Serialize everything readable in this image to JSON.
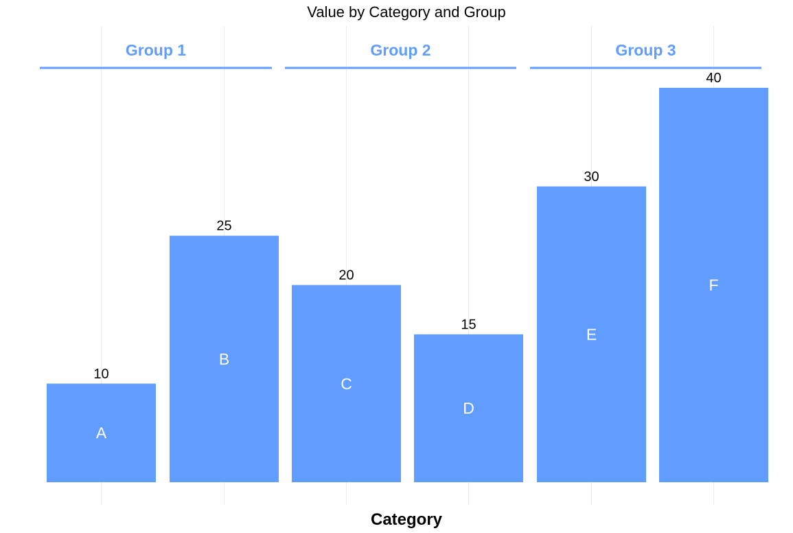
{
  "chart_data": {
    "type": "bar",
    "title": "Value by Category and Group",
    "xlabel": "Category",
    "ylabel": "",
    "ylim": [
      0,
      40
    ],
    "grid": "vertical-only",
    "legend": "none",
    "categories": [
      "A",
      "B",
      "C",
      "D",
      "E",
      "F"
    ],
    "values": [
      10,
      25,
      20,
      15,
      30,
      40
    ],
    "groups": [
      {
        "name": "Group 1",
        "categories": [
          "A",
          "B"
        ]
      },
      {
        "name": "Group 2",
        "categories": [
          "C",
          "D"
        ]
      },
      {
        "name": "Group 3",
        "categories": [
          "E",
          "F"
        ]
      }
    ],
    "colors": {
      "bar": "#619CFF",
      "group_header": "#619CFF",
      "grid": "#EBEBEB",
      "value_label": "#000000",
      "category_label": "#FFFFFF"
    }
  }
}
